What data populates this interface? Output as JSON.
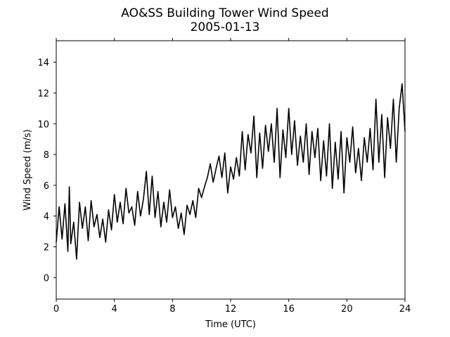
{
  "chart_data": {
    "type": "line",
    "title": "AO&SS Building Tower Wind Speed",
    "subtitle": "2005-01-13",
    "xlabel": "Time (UTC)",
    "ylabel": "Wind Speed (m/s)",
    "xlim": [
      0,
      24
    ],
    "ylim": [
      -1.4,
      15.4
    ],
    "xticks": [
      0,
      4,
      8,
      12,
      16,
      20,
      24
    ],
    "xtick_labels": [
      "0",
      "4",
      "8",
      "12",
      "16",
      "20",
      "24"
    ],
    "yticks": [
      0,
      2,
      4,
      6,
      8,
      10,
      12,
      14
    ],
    "ytick_labels": [
      "0",
      "2",
      "4",
      "6",
      "8",
      "10",
      "12",
      "14"
    ],
    "grid": false,
    "line_color": "#000000",
    "series": [
      {
        "x": [
          0.0,
          0.2,
          0.4,
          0.6,
          0.8,
          0.9,
          1.0,
          1.2,
          1.4,
          1.6,
          1.8,
          2.0,
          2.2,
          2.4,
          2.6,
          2.8,
          3.0,
          3.2,
          3.4,
          3.6,
          3.8,
          4.0,
          4.2,
          4.4,
          4.6,
          4.8,
          5.0,
          5.2,
          5.4,
          5.6,
          5.8,
          6.0,
          6.2,
          6.4,
          6.6,
          6.8,
          7.0,
          7.2,
          7.4,
          7.6,
          7.8,
          8.0,
          8.2,
          8.4,
          8.6,
          8.8,
          9.0,
          9.2,
          9.4,
          9.6,
          9.8,
          10.0,
          10.2,
          10.4,
          10.6,
          10.8,
          11.0,
          11.2,
          11.4,
          11.6,
          11.8,
          12.0,
          12.2,
          12.4,
          12.6,
          12.8,
          13.0,
          13.2,
          13.4,
          13.6,
          13.8,
          14.0,
          14.2,
          14.4,
          14.6,
          14.8,
          15.0,
          15.2,
          15.4,
          15.6,
          15.8,
          16.0,
          16.2,
          16.4,
          16.6,
          16.8,
          17.0,
          17.2,
          17.4,
          17.6,
          17.8,
          18.0,
          18.2,
          18.4,
          18.6,
          18.8,
          19.0,
          19.2,
          19.4,
          19.6,
          19.8,
          20.0,
          20.2,
          20.4,
          20.6,
          20.8,
          21.0,
          21.2,
          21.4,
          21.6,
          21.8,
          22.0,
          22.2,
          22.4,
          22.6,
          22.8,
          23.0,
          23.2,
          23.4,
          23.6,
          23.8,
          24.0
        ],
        "y": [
          2.3,
          4.6,
          2.5,
          4.8,
          1.7,
          5.9,
          2.2,
          3.6,
          1.2,
          4.9,
          3.2,
          4.6,
          2.4,
          5.0,
          3.3,
          4.1,
          2.6,
          3.8,
          2.3,
          4.4,
          3.1,
          5.4,
          3.6,
          4.9,
          3.5,
          5.8,
          4.2,
          4.6,
          3.4,
          5.6,
          4.0,
          5.1,
          6.9,
          4.1,
          6.6,
          3.9,
          5.6,
          3.3,
          4.9,
          3.6,
          5.7,
          3.9,
          4.6,
          3.2,
          4.2,
          2.8,
          4.7,
          4.1,
          5.0,
          3.9,
          5.8,
          5.2,
          5.9,
          6.5,
          7.4,
          6.2,
          7.1,
          7.9,
          6.5,
          8.1,
          5.5,
          7.2,
          6.4,
          7.8,
          6.6,
          9.5,
          7.0,
          9.3,
          8.1,
          10.5,
          6.5,
          9.4,
          7.1,
          9.9,
          8.2,
          10.0,
          7.5,
          11.0,
          6.5,
          9.6,
          7.8,
          11.0,
          8.0,
          10.2,
          7.3,
          9.2,
          7.5,
          10.0,
          6.7,
          9.5,
          7.8,
          9.7,
          6.3,
          8.9,
          6.6,
          10.0,
          5.8,
          8.8,
          6.4,
          9.5,
          5.5,
          9.1,
          7.5,
          9.8,
          6.8,
          8.4,
          6.3,
          9.1,
          7.5,
          9.7,
          7.0,
          11.6,
          7.5,
          10.6,
          6.5,
          10.4,
          8.4,
          11.6,
          7.5,
          11.0,
          12.6,
          9.5
        ]
      }
    ]
  }
}
